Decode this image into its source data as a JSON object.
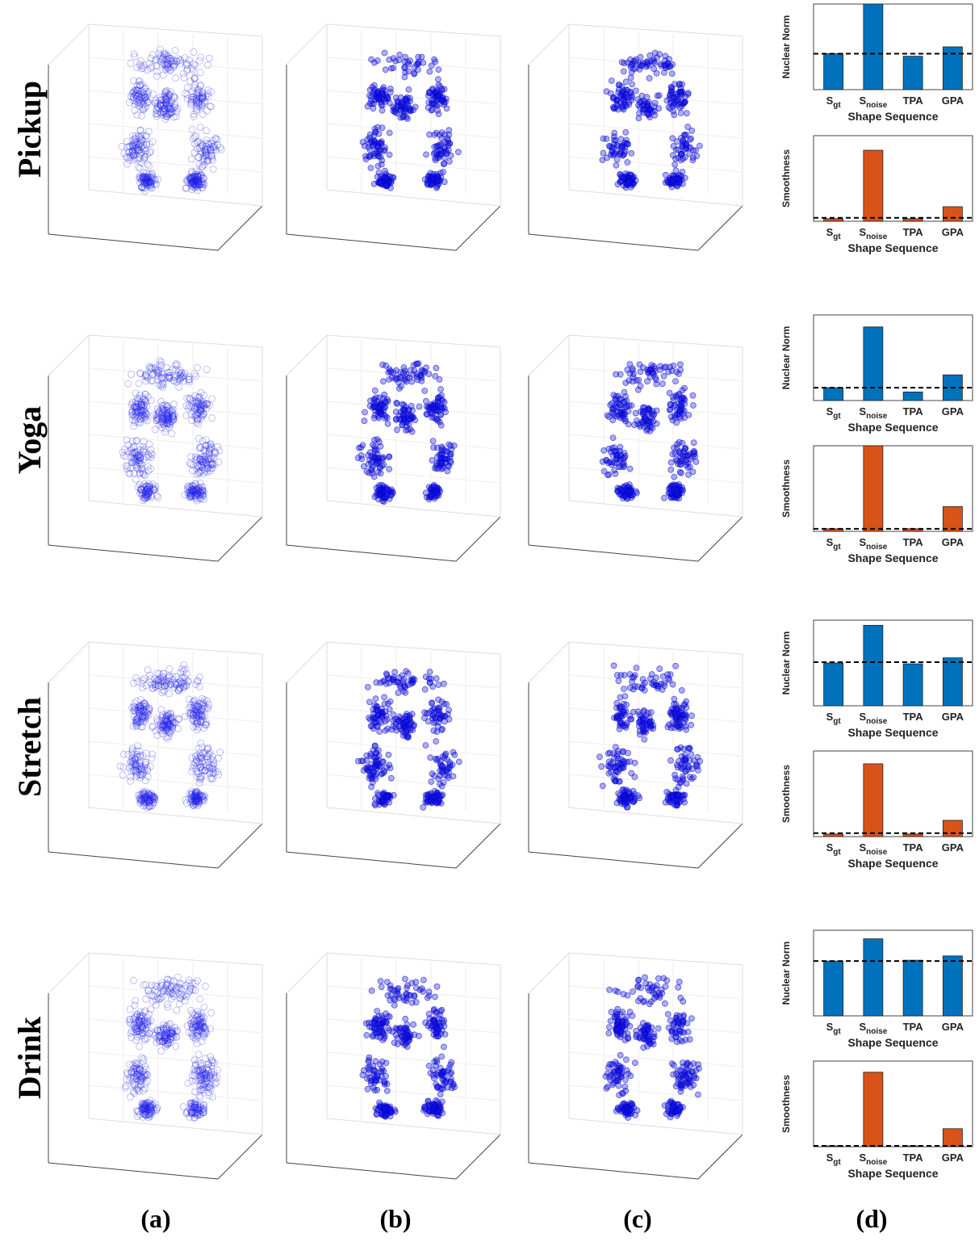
{
  "rows": [
    "Pickup",
    "Yoga",
    "Stretch",
    "Drink"
  ],
  "columns": [
    "(a)",
    "(b)",
    "(c)",
    "(d)"
  ],
  "chart_data": [
    {
      "type": "bar",
      "ylabel": "Nuclear Norm",
      "xlabel": "Shape Sequence",
      "categories": [
        "Sgt",
        "Snoise",
        "TPA",
        "GPA"
      ],
      "values": [
        0.42,
        1.0,
        0.39,
        0.5
      ],
      "color": "#0072bd",
      "ylim": [
        0,
        1
      ],
      "reference": 0.42
    },
    {
      "type": "bar",
      "ylabel": "Smoothness",
      "xlabel": "Shape Sequence",
      "categories": [
        "Sgt",
        "Snoise",
        "TPA",
        "GPA"
      ],
      "values": [
        0.03,
        0.83,
        0.03,
        0.17
      ],
      "color": "#d95319",
      "ylim": [
        0,
        1
      ],
      "reference": 0.04
    },
    {
      "type": "bar",
      "ylabel": "Nuclear Norm",
      "xlabel": "Shape Sequence",
      "categories": [
        "Sgt",
        "Snoise",
        "TPA",
        "GPA"
      ],
      "values": [
        0.15,
        0.86,
        0.1,
        0.3
      ],
      "color": "#0072bd",
      "ylim": [
        0,
        1
      ],
      "reference": 0.15
    },
    {
      "type": "bar",
      "ylabel": "Smoothness",
      "xlabel": "Shape Sequence",
      "categories": [
        "Sgt",
        "Snoise",
        "TPA",
        "GPA"
      ],
      "values": [
        0.03,
        1.0,
        0.03,
        0.29
      ],
      "color": "#d95319",
      "ylim": [
        0,
        1
      ],
      "reference": 0.03
    },
    {
      "type": "bar",
      "ylabel": "Nuclear Norm",
      "xlabel": "Shape Sequence",
      "categories": [
        "Sgt",
        "Snoise",
        "TPA",
        "GPA"
      ],
      "values": [
        0.5,
        0.94,
        0.49,
        0.56
      ],
      "color": "#0072bd",
      "ylim": [
        0,
        1
      ],
      "reference": 0.51
    },
    {
      "type": "bar",
      "ylabel": "Smoothness",
      "xlabel": "Shape Sequence",
      "categories": [
        "Sgt",
        "Snoise",
        "TPA",
        "GPA"
      ],
      "values": [
        0.03,
        0.85,
        0.03,
        0.19
      ],
      "color": "#d95319",
      "ylim": [
        0,
        1
      ],
      "reference": 0.04
    },
    {
      "type": "bar",
      "ylabel": "Nuclear Norm",
      "xlabel": "Shape Sequence",
      "categories": [
        "Sgt",
        "Snoise",
        "TPA",
        "GPA"
      ],
      "values": [
        0.64,
        0.9,
        0.65,
        0.7
      ],
      "color": "#0072bd",
      "ylim": [
        0,
        1
      ],
      "reference": 0.64
    },
    {
      "type": "bar",
      "ylabel": "Smoothness",
      "xlabel": "Shape Sequence",
      "categories": [
        "Sgt",
        "Snoise",
        "TPA",
        "GPA"
      ],
      "values": [
        0.01,
        0.87,
        0.01,
        0.21
      ],
      "color": "#d95319",
      "ylim": [
        0,
        1
      ],
      "reference": 0.01
    }
  ]
}
